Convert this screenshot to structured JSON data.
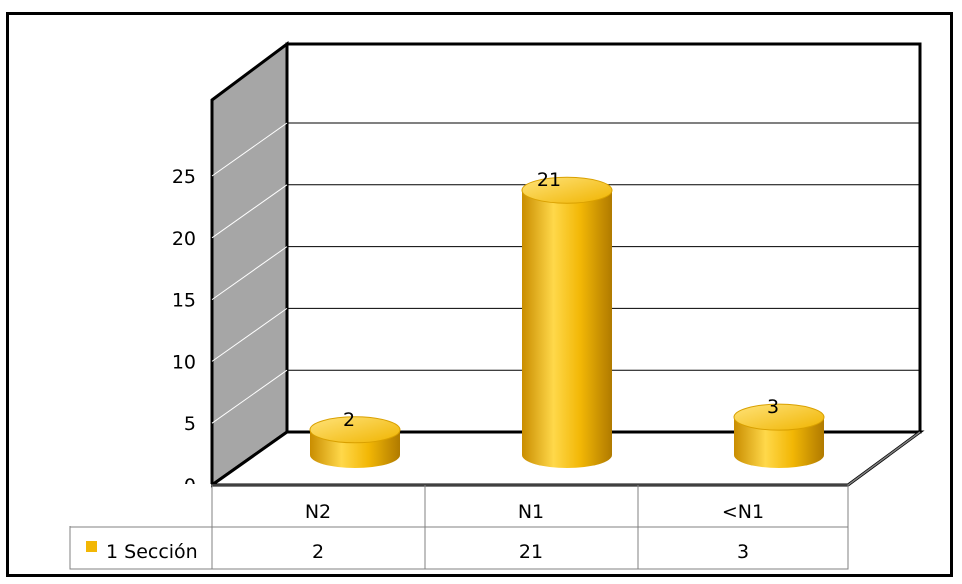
{
  "chart_data": {
    "type": "bar",
    "style": "3d-cylinder",
    "categories": [
      "N2",
      "N1",
      "<N1"
    ],
    "series": [
      {
        "name": "1 Sección",
        "values": [
          2,
          21,
          3
        ],
        "color": "#f2b705"
      }
    ],
    "data_labels": [
      "2",
      "21",
      "3"
    ],
    "y_ticks": [
      "0",
      "5",
      "10",
      "15",
      "20",
      "25"
    ],
    "ylim": [
      0,
      25
    ],
    "grid": true,
    "legend_placement": "data-table-left",
    "data_table": true,
    "wall_color": "#a6a6a6"
  }
}
